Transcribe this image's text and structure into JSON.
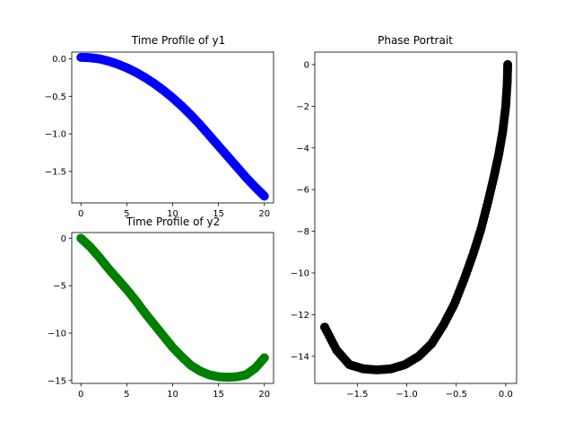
{
  "chart_data": [
    {
      "type": "scatter",
      "title": "Time Profile of y1",
      "xlabel": "",
      "ylabel": "",
      "xlim": [
        -1,
        21
      ],
      "ylim": [
        -1.92,
        0.09
      ],
      "xticks": [
        0,
        5,
        10,
        15,
        20
      ],
      "xtick_labels": [
        "0",
        "5",
        "10",
        "15",
        "20"
      ],
      "yticks": [
        0.0,
        -0.5,
        -1.0,
        -1.5
      ],
      "ytick_labels": [
        "0.0",
        "−0.5",
        "−1.0",
        "−1.5"
      ],
      "grid": false,
      "color": "#0000ff",
      "x": [
        0,
        1,
        2,
        3,
        4,
        5,
        6,
        7,
        8,
        9,
        10,
        11,
        12,
        13,
        14,
        15,
        16,
        17,
        18,
        19,
        20
      ],
      "y": [
        0.02,
        0.015,
        0.0,
        -0.03,
        -0.07,
        -0.12,
        -0.18,
        -0.25,
        -0.33,
        -0.42,
        -0.52,
        -0.63,
        -0.75,
        -0.88,
        -1.02,
        -1.16,
        -1.3,
        -1.44,
        -1.58,
        -1.71,
        -1.83
      ]
    },
    {
      "type": "scatter",
      "title": "Time Profile of y2",
      "xlabel": "",
      "ylabel": "",
      "xlim": [
        -1,
        21
      ],
      "ylim": [
        -15.3,
        0.6
      ],
      "xticks": [
        0,
        5,
        10,
        15,
        20
      ],
      "xtick_labels": [
        "0",
        "5",
        "10",
        "15",
        "20"
      ],
      "yticks": [
        0,
        -5,
        -10,
        -15
      ],
      "ytick_labels": [
        "0",
        "−5",
        "−10",
        "−15"
      ],
      "grid": false,
      "color": "#008000",
      "x": [
        0,
        1,
        2,
        3,
        4,
        5,
        6,
        7,
        8,
        9,
        10,
        11,
        12,
        13,
        14,
        15,
        16,
        17,
        18,
        19,
        20
      ],
      "y": [
        0.0,
        -0.9,
        -2.0,
        -3.2,
        -4.3,
        -5.4,
        -6.6,
        -7.9,
        -9.1,
        -10.3,
        -11.5,
        -12.5,
        -13.4,
        -14.0,
        -14.4,
        -14.6,
        -14.65,
        -14.6,
        -14.4,
        -13.7,
        -12.6
      ]
    },
    {
      "type": "scatter",
      "title": "Phase Portrait",
      "xlabel": "",
      "ylabel": "",
      "xlim": [
        -1.93,
        0.11
      ],
      "ylim": [
        -15.3,
        0.6
      ],
      "xticks": [
        -1.5,
        -1.0,
        -0.5,
        0.0
      ],
      "xtick_labels": [
        "−1.5",
        "−1.0",
        "−0.5",
        "0.0"
      ],
      "yticks": [
        0,
        -2,
        -4,
        -6,
        -8,
        -10,
        -12,
        -14
      ],
      "ytick_labels": [
        "0",
        "−2",
        "−4",
        "−6",
        "−8",
        "−10",
        "−12",
        "−14"
      ],
      "grid": false,
      "color": "#000000",
      "x": [
        0.02,
        0.015,
        0.0,
        -0.03,
        -0.07,
        -0.12,
        -0.18,
        -0.25,
        -0.33,
        -0.42,
        -0.52,
        -0.63,
        -0.75,
        -0.88,
        -1.02,
        -1.16,
        -1.3,
        -1.44,
        -1.58,
        -1.71,
        -1.83
      ],
      "y": [
        0.0,
        -0.9,
        -2.0,
        -3.2,
        -4.3,
        -5.4,
        -6.6,
        -7.9,
        -9.1,
        -10.3,
        -11.5,
        -12.5,
        -13.4,
        -14.0,
        -14.4,
        -14.6,
        -14.65,
        -14.6,
        -14.4,
        -13.7,
        -12.6
      ]
    }
  ]
}
